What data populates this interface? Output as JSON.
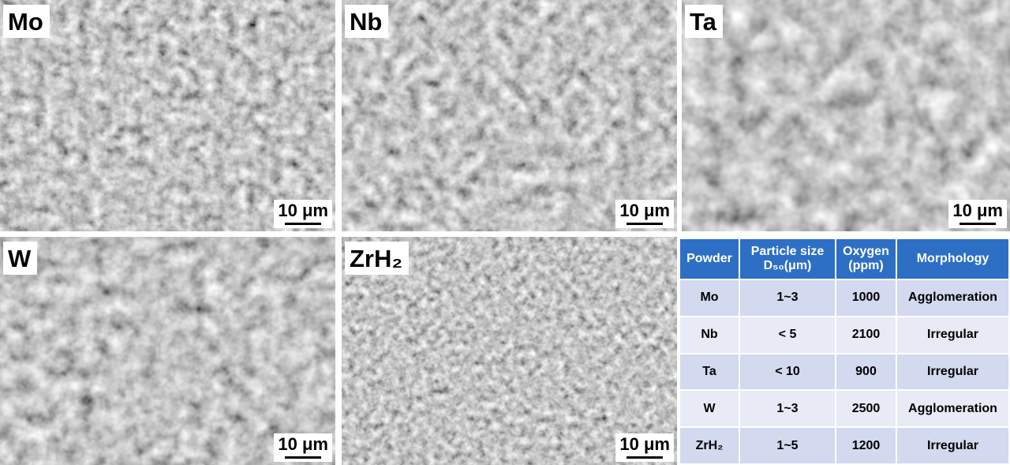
{
  "panels": [
    {
      "label": "Mo",
      "scale_bar": "10 μm"
    },
    {
      "label": "Nb",
      "scale_bar": "10 μm"
    },
    {
      "label": "Ta",
      "scale_bar": "10 μm"
    },
    {
      "label": "W",
      "scale_bar": "10 μm"
    },
    {
      "label": "ZrH₂",
      "scale_bar": "10 μm"
    }
  ],
  "table": {
    "header": [
      [
        "Powder"
      ],
      [
        "Particle size",
        "D₅₀(μm)"
      ],
      [
        "Oxygen",
        "(ppm)"
      ],
      [
        "Morphology"
      ]
    ],
    "rows": [
      [
        "Mo",
        "1~3",
        "1000",
        "Agglomeration"
      ],
      [
        "Nb",
        "< 5",
        "2100",
        "Irregular"
      ],
      [
        "Ta",
        "< 10",
        "900",
        "Irregular"
      ],
      [
        "W",
        "1~3",
        "2500",
        "Agglomeration"
      ],
      [
        "ZrH₂",
        "1~5",
        "1200",
        "Irregular"
      ]
    ]
  }
}
